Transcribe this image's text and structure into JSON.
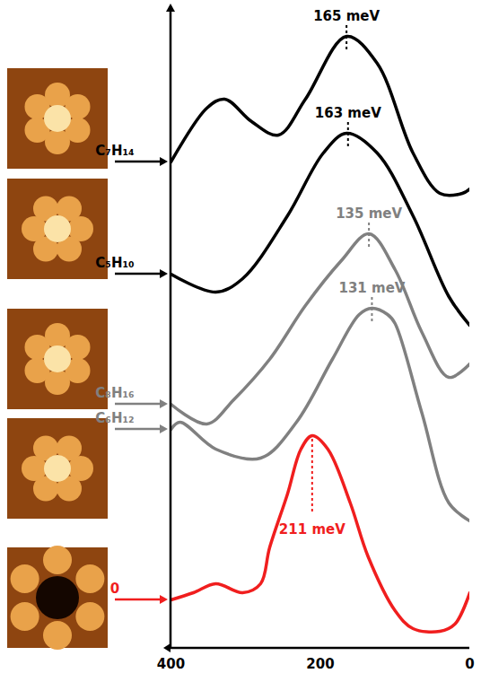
{
  "chart_data": {
    "type": "line",
    "xlim": [
      400,
      0
    ],
    "xticks": [
      400,
      200,
      0
    ],
    "ylim": [
      0,
      712
    ],
    "tick_labels": "x",
    "series": [
      {
        "name": "C₇H₁₄",
        "color": "#000000",
        "x": [
          400,
          352,
          328,
          292,
          256,
          220,
          165,
          124,
          76,
          40,
          10,
          0
        ],
        "values": [
          542,
          602,
          612,
          587,
          572,
          612,
          682,
          652,
          552,
          507,
          507,
          512
        ],
        "peak": 165,
        "peak_label": "165 meV"
      },
      {
        "name": "C₅H₁₀",
        "color": "#000000",
        "x": [
          400,
          340,
          304,
          244,
          196,
          165,
          124,
          76,
          28,
          0
        ],
        "values": [
          417,
          397,
          412,
          482,
          552,
          574,
          552,
          482,
          392,
          360
        ],
        "peak": 163,
        "peak_label": "163 meV"
      },
      {
        "name": "C₈H₁₆",
        "color": "#808080",
        "x": [
          400,
          352,
          316,
          268,
          220,
          172,
          135,
          100,
          64,
          28,
          0
        ],
        "values": [
          272,
          250,
          277,
          322,
          382,
          432,
          462,
          422,
          352,
          302,
          317
        ],
        "peak": 135,
        "peak_label": "135 meV"
      },
      {
        "name": "C₆H₁₂",
        "color": "#808080",
        "x": [
          400,
          388,
          340,
          280,
          232,
          184,
          148,
          131,
          110,
          100,
          64,
          28,
          0
        ],
        "values": [
          244,
          252,
          222,
          212,
          252,
          322,
          372,
          379,
          372,
          362,
          262,
          162,
          142
        ],
        "peak": 131,
        "peak_label": "131 meV"
      },
      {
        "name": "0",
        "color": "#f01e1e",
        "x": [
          400,
          370,
          340,
          304,
          280,
          268,
          244,
          226,
          211,
          190,
          160,
          136,
          100,
          76,
          40,
          20,
          0
        ],
        "values": [
          54,
          62,
          72,
          62,
          72,
          112,
          172,
          222,
          237,
          222,
          162,
          102,
          42,
          22,
          19,
          27,
          62
        ],
        "peak": 211,
        "peak_label": "211 meV"
      }
    ]
  }
}
